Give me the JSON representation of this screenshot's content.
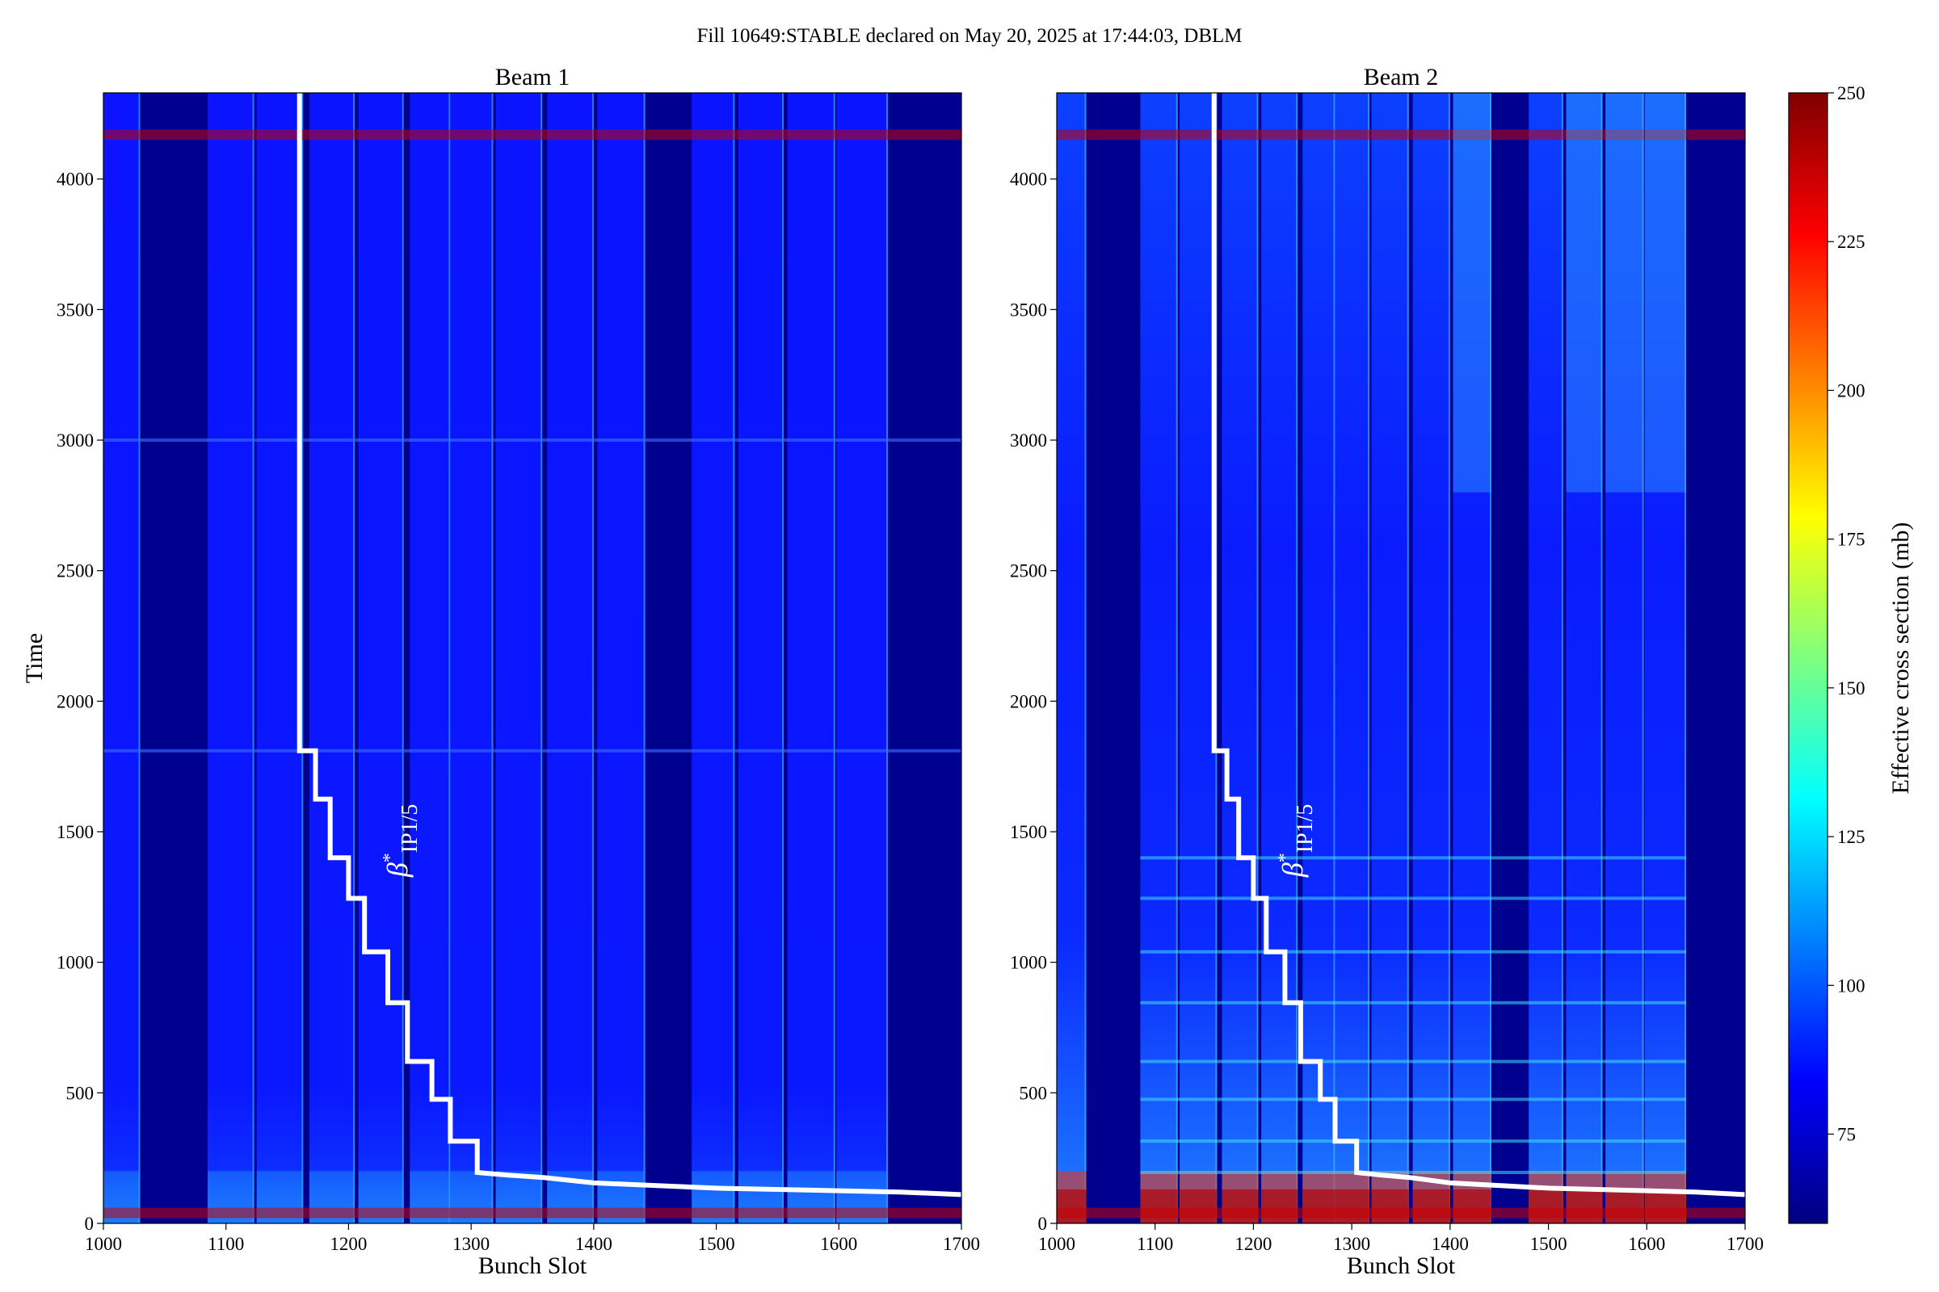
{
  "figure": {
    "suptitle": "Fill 10649:STABLE declared on May 20, 2025 at 17:44:03, DBLM"
  },
  "chart_data": [
    {
      "type": "heatmap",
      "title": "Beam 1",
      "xlabel": "Bunch Slot",
      "ylabel": "Time",
      "xlim": [
        1000,
        1700
      ],
      "ylim": [
        0,
        4330
      ],
      "xticks": [
        1000,
        1100,
        1200,
        1300,
        1400,
        1500,
        1600,
        1700
      ],
      "yticks": [
        0,
        500,
        1000,
        1500,
        2000,
        2500,
        3000,
        3500,
        4000
      ],
      "filled_slot_ranges": [
        [
          1000,
          1030
        ],
        [
          1085,
          1123
        ],
        [
          1125,
          1163
        ],
        [
          1168,
          1205
        ],
        [
          1208,
          1245
        ],
        [
          1250,
          1283
        ],
        [
          1283,
          1318
        ],
        [
          1320,
          1358
        ],
        [
          1362,
          1400
        ],
        [
          1403,
          1442
        ],
        [
          1480,
          1515
        ],
        [
          1518,
          1555
        ],
        [
          1558,
          1597
        ],
        [
          1598,
          1640
        ]
      ],
      "empty_slot_color": "#00008f",
      "filled_slot_color": "#0a14ff",
      "annotation": {
        "base": "β",
        "superscript": "*",
        "subscript": "IP1/5",
        "x": 1240,
        "y": 1450
      },
      "beta_star_line": {
        "color": "#ffffff",
        "points": [
          [
            1160,
            4330
          ],
          [
            1160,
            1810
          ],
          [
            1173,
            1810
          ],
          [
            1173,
            1625
          ],
          [
            1185,
            1625
          ],
          [
            1185,
            1400
          ],
          [
            1200,
            1400
          ],
          [
            1200,
            1245
          ],
          [
            1213,
            1245
          ],
          [
            1213,
            1040
          ],
          [
            1232,
            1040
          ],
          [
            1232,
            845
          ],
          [
            1248,
            845
          ],
          [
            1248,
            620
          ],
          [
            1268,
            620
          ],
          [
            1268,
            475
          ],
          [
            1283,
            475
          ],
          [
            1283,
            315
          ],
          [
            1305,
            315
          ],
          [
            1305,
            195
          ],
          [
            1330,
            185
          ],
          [
            1360,
            175
          ],
          [
            1400,
            155
          ],
          [
            1450,
            145
          ],
          [
            1500,
            135
          ],
          [
            1550,
            130
          ],
          [
            1600,
            125
          ],
          [
            1650,
            120
          ],
          [
            1700,
            110
          ]
        ]
      }
    },
    {
      "type": "heatmap",
      "title": "Beam 2",
      "xlabel": "Bunch Slot",
      "ylabel": "",
      "xlim": [
        1000,
        1700
      ],
      "ylim": [
        0,
        4330
      ],
      "xticks": [
        1000,
        1100,
        1200,
        1300,
        1400,
        1500,
        1600,
        1700
      ],
      "yticks": [
        0,
        500,
        1000,
        1500,
        2000,
        2500,
        3000,
        3500,
        4000
      ],
      "filled_slot_ranges": [
        [
          1000,
          1030
        ],
        [
          1085,
          1123
        ],
        [
          1125,
          1163
        ],
        [
          1168,
          1205
        ],
        [
          1208,
          1245
        ],
        [
          1250,
          1283
        ],
        [
          1283,
          1318
        ],
        [
          1320,
          1358
        ],
        [
          1362,
          1400
        ],
        [
          1403,
          1442
        ],
        [
          1480,
          1515
        ],
        [
          1518,
          1555
        ],
        [
          1558,
          1597
        ],
        [
          1598,
          1640
        ]
      ],
      "empty_slot_color": "#00008f",
      "filled_slot_color": "#0a14ff",
      "annotation": {
        "base": "β",
        "superscript": "*",
        "subscript": "IP1/5",
        "x": 1240,
        "y": 1450
      },
      "beta_star_line": {
        "color": "#ffffff",
        "points": [
          [
            1160,
            4330
          ],
          [
            1160,
            1810
          ],
          [
            1173,
            1810
          ],
          [
            1173,
            1625
          ],
          [
            1185,
            1625
          ],
          [
            1185,
            1400
          ],
          [
            1200,
            1400
          ],
          [
            1200,
            1245
          ],
          [
            1213,
            1245
          ],
          [
            1213,
            1040
          ],
          [
            1232,
            1040
          ],
          [
            1232,
            845
          ],
          [
            1248,
            845
          ],
          [
            1248,
            620
          ],
          [
            1268,
            620
          ],
          [
            1268,
            475
          ],
          [
            1283,
            475
          ],
          [
            1283,
            315
          ],
          [
            1305,
            315
          ],
          [
            1305,
            195
          ],
          [
            1330,
            185
          ],
          [
            1360,
            175
          ],
          [
            1400,
            155
          ],
          [
            1450,
            145
          ],
          [
            1500,
            135
          ],
          [
            1550,
            130
          ],
          [
            1600,
            125
          ],
          [
            1650,
            120
          ],
          [
            1700,
            110
          ]
        ]
      }
    }
  ],
  "colorbar": {
    "label": "Effective cross section (mb)",
    "range": [
      60,
      250
    ],
    "ticks": [
      75,
      100,
      125,
      150,
      175,
      200,
      225,
      250
    ],
    "colormap": [
      "#00007f",
      "#0000ff",
      "#007fff",
      "#00ffff",
      "#7fff7f",
      "#ffff00",
      "#ff7f00",
      "#ff0000",
      "#7f0000"
    ]
  }
}
